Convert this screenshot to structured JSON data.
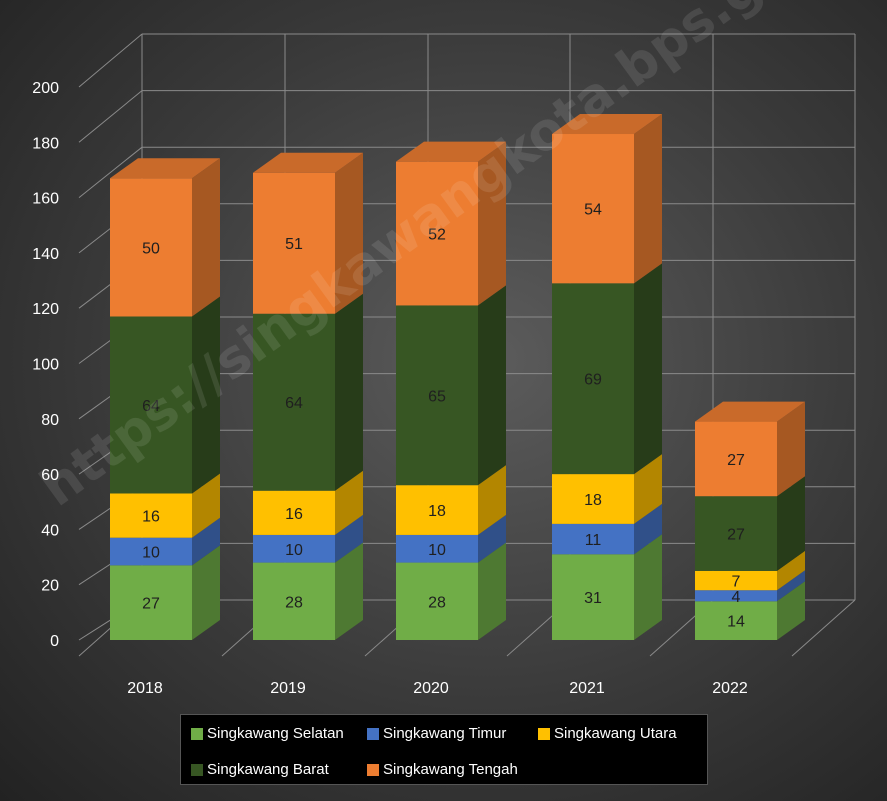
{
  "chart_data": {
    "type": "bar",
    "stacked": true,
    "three_d": true,
    "categories": [
      "2018",
      "2019",
      "2020",
      "2021",
      "2022"
    ],
    "series": [
      {
        "name": "Singkawang Selatan",
        "color": "#70ad47",
        "values": [
          27,
          28,
          28,
          31,
          14
        ]
      },
      {
        "name": "Singkawang Timur",
        "color": "#4472c4",
        "values": [
          10,
          10,
          10,
          11,
          4
        ]
      },
      {
        "name": "Singkawang Utara",
        "color": "#ffc000",
        "values": [
          16,
          16,
          18,
          18,
          7
        ]
      },
      {
        "name": "Singkawang Barat",
        "color": "#375623",
        "values": [
          64,
          64,
          65,
          69,
          27
        ]
      },
      {
        "name": "Singkawang Tengah",
        "color": "#ed7d31",
        "values": [
          50,
          51,
          52,
          54,
          27
        ]
      }
    ],
    "ylim": [
      0,
      200
    ],
    "yticks": [
      0,
      20,
      40,
      60,
      80,
      100,
      120,
      140,
      160,
      180,
      200
    ],
    "grid": true,
    "legend_position": "bottom"
  },
  "watermark": "https://singkawangkota.bps.go.id"
}
